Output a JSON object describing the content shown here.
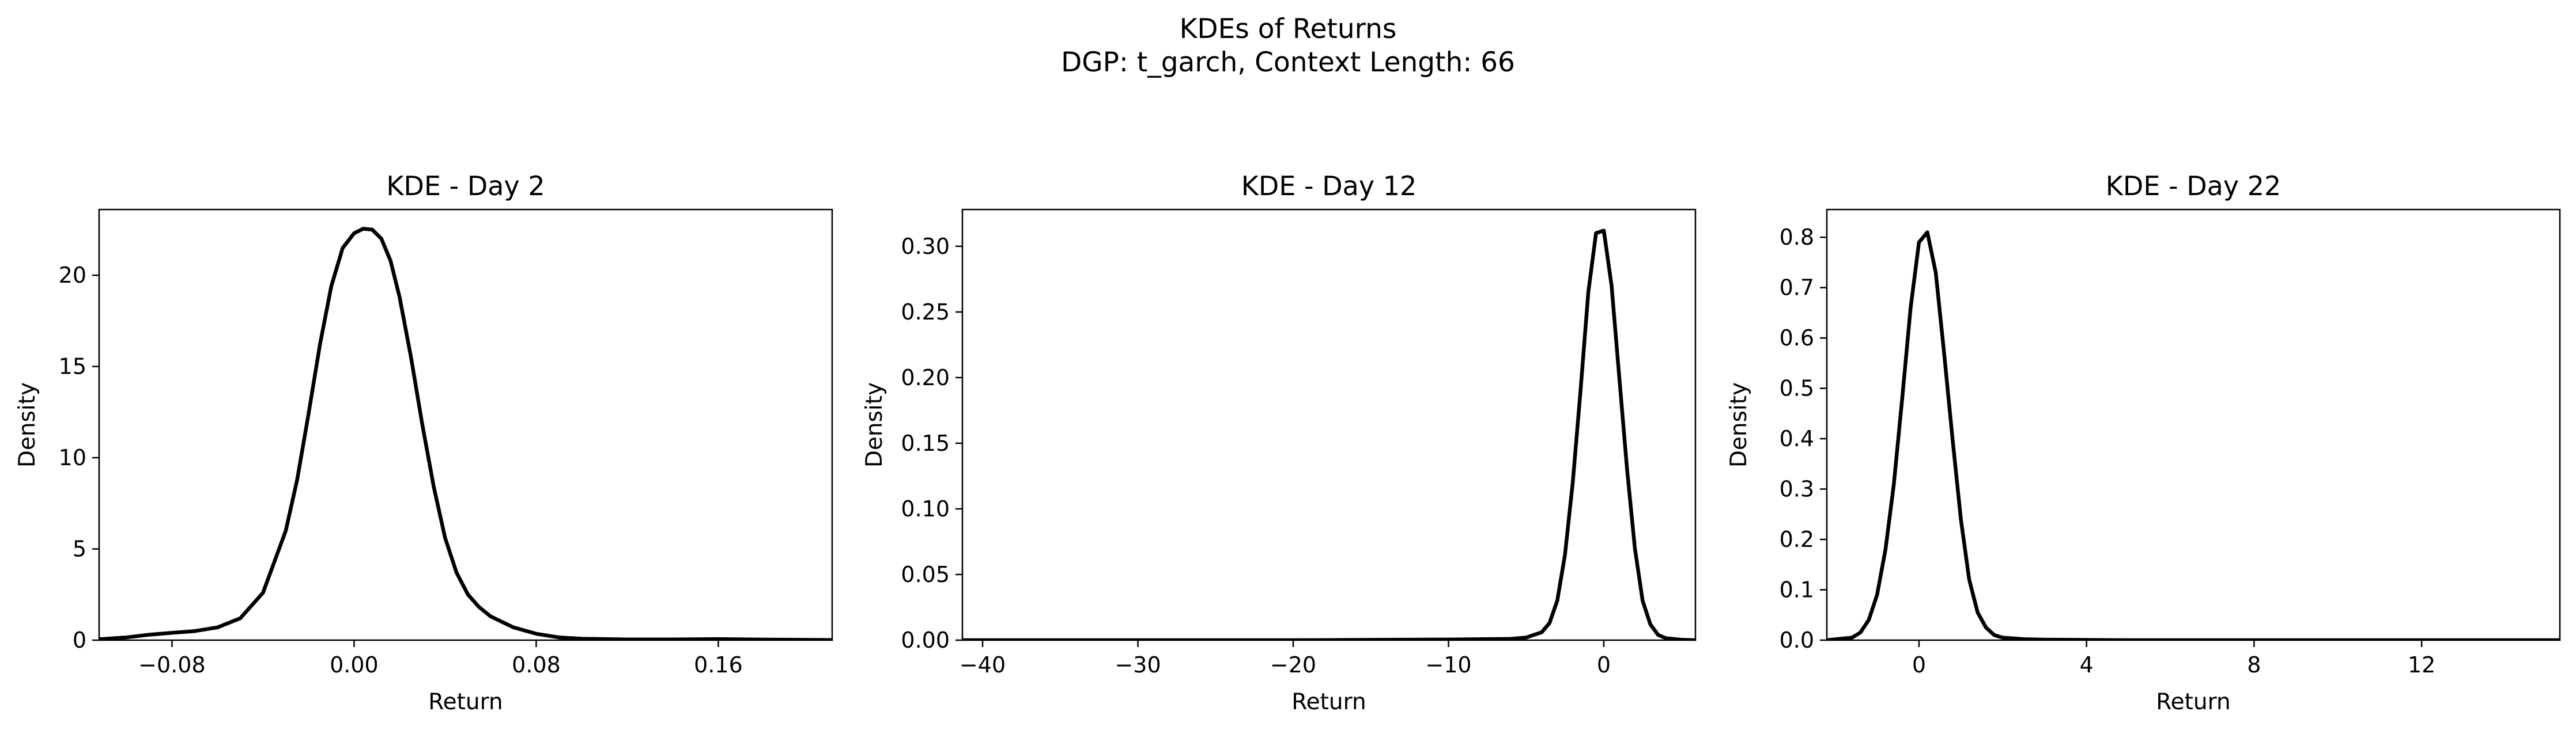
{
  "figure": {
    "title": "KDEs of Returns",
    "subtitle": "DGP: t_garch, Context Length: 66"
  },
  "chart_data": [
    {
      "type": "line",
      "title": "KDE - Day 2",
      "xlabel": "Return",
      "ylabel": "Density",
      "xlim": [
        -0.112,
        0.21
      ],
      "ylim": [
        0,
        23.6
      ],
      "xticks": [
        -0.08,
        0.0,
        0.08,
        0.16
      ],
      "xtick_labels": [
        "−0.08",
        "0.00",
        "0.08",
        "0.16"
      ],
      "yticks": [
        0,
        5,
        10,
        15,
        20
      ],
      "ytick_labels": [
        "0",
        "5",
        "10",
        "15",
        "20"
      ],
      "grid": false,
      "line_color": "#000000",
      "x": [
        -0.112,
        -0.1,
        -0.09,
        -0.08,
        -0.07,
        -0.06,
        -0.05,
        -0.04,
        -0.03,
        -0.025,
        -0.02,
        -0.015,
        -0.01,
        -0.005,
        0.0,
        0.004,
        0.008,
        0.012,
        0.016,
        0.02,
        0.025,
        0.03,
        0.035,
        0.04,
        0.045,
        0.05,
        0.055,
        0.06,
        0.07,
        0.08,
        0.09,
        0.1,
        0.12,
        0.14,
        0.16,
        0.18,
        0.21
      ],
      "y": [
        0.05,
        0.15,
        0.3,
        0.4,
        0.5,
        0.7,
        1.2,
        2.6,
        6.0,
        8.8,
        12.4,
        16.2,
        19.4,
        21.5,
        22.3,
        22.55,
        22.5,
        22.0,
        20.8,
        18.8,
        15.5,
        11.8,
        8.4,
        5.6,
        3.7,
        2.5,
        1.8,
        1.3,
        0.7,
        0.35,
        0.15,
        0.08,
        0.04,
        0.04,
        0.06,
        0.03,
        0.01
      ]
    },
    {
      "type": "line",
      "title": "KDE - Day 12",
      "xlabel": "Return",
      "ylabel": "Density",
      "xlim": [
        -41.3,
        5.9
      ],
      "ylim": [
        0,
        0.328
      ],
      "xticks": [
        -40,
        -30,
        -20,
        -10,
        0
      ],
      "xtick_labels": [
        "−40",
        "−30",
        "−20",
        "−10",
        "0"
      ],
      "yticks": [
        0.0,
        0.05,
        0.1,
        0.15,
        0.2,
        0.25,
        0.3
      ],
      "ytick_labels": [
        "0.00",
        "0.05",
        "0.10",
        "0.15",
        "0.20",
        "0.25",
        "0.30"
      ],
      "grid": false,
      "line_color": "#000000",
      "x": [
        -41.3,
        -30,
        -20,
        -10,
        -6,
        -5,
        -4,
        -3.5,
        -3,
        -2.5,
        -2,
        -1.5,
        -1.0,
        -0.5,
        0.0,
        0.5,
        1.0,
        1.5,
        2.0,
        2.5,
        3.0,
        3.5,
        4.0,
        5.0,
        5.9
      ],
      "y": [
        0.0,
        0.0,
        0.0,
        0.0005,
        0.001,
        0.002,
        0.006,
        0.013,
        0.03,
        0.065,
        0.12,
        0.19,
        0.265,
        0.31,
        0.312,
        0.27,
        0.2,
        0.13,
        0.07,
        0.03,
        0.012,
        0.004,
        0.0015,
        0.0003,
        0.0
      ]
    },
    {
      "type": "line",
      "title": "KDE - Day 22",
      "xlabel": "Return",
      "ylabel": "Density",
      "xlim": [
        -2.2,
        15.3
      ],
      "ylim": [
        0,
        0.855
      ],
      "xticks": [
        0,
        4,
        8,
        12
      ],
      "xtick_labels": [
        "0",
        "4",
        "8",
        "12"
      ],
      "yticks": [
        0.0,
        0.1,
        0.2,
        0.3,
        0.4,
        0.5,
        0.6,
        0.7,
        0.8
      ],
      "ytick_labels": [
        "0.0",
        "0.1",
        "0.2",
        "0.3",
        "0.4",
        "0.5",
        "0.6",
        "0.7",
        "0.8"
      ],
      "grid": false,
      "line_color": "#000000",
      "x": [
        -2.2,
        -1.6,
        -1.4,
        -1.2,
        -1.0,
        -0.8,
        -0.6,
        -0.4,
        -0.2,
        0.0,
        0.2,
        0.4,
        0.6,
        0.8,
        1.0,
        1.2,
        1.4,
        1.6,
        1.8,
        2.0,
        2.5,
        3.0,
        5.0,
        10.0,
        15.3
      ],
      "y": [
        0.0,
        0.005,
        0.015,
        0.04,
        0.09,
        0.18,
        0.31,
        0.48,
        0.66,
        0.79,
        0.81,
        0.73,
        0.57,
        0.4,
        0.24,
        0.12,
        0.055,
        0.025,
        0.01,
        0.005,
        0.002,
        0.001,
        0.0,
        0.0,
        0.0
      ]
    }
  ]
}
